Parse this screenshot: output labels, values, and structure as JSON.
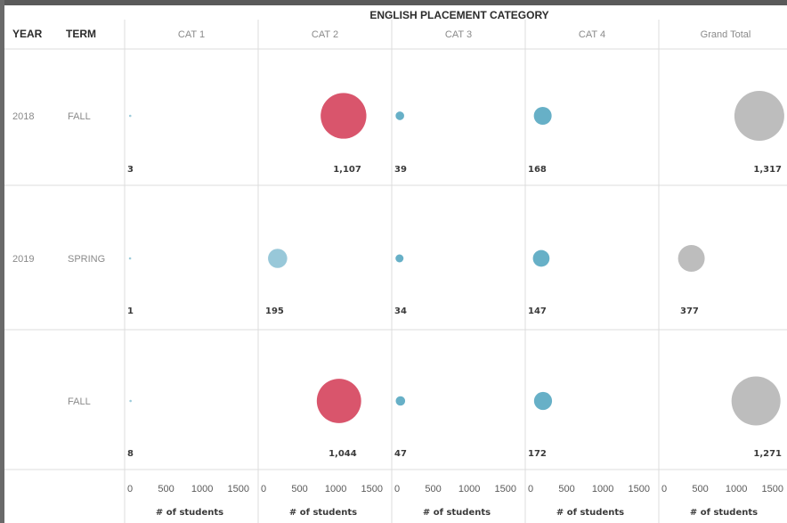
{
  "chart_data": {
    "type": "scatter",
    "title": "ENGLISH PLACEMENT CATEGORY",
    "row_headers": [
      "YEAR",
      "TERM"
    ],
    "columns": [
      "CAT 1",
      "CAT 2",
      "CAT 3",
      "CAT 4",
      "Grand Total"
    ],
    "rows": [
      {
        "year": "2018",
        "term": "FALL",
        "values": [
          3,
          1107,
          39,
          168,
          1317
        ]
      },
      {
        "year": "2019",
        "term": "SPRING",
        "values": [
          1,
          195,
          34,
          147,
          377
        ]
      },
      {
        "year": "",
        "term": "FALL",
        "values": [
          8,
          1044,
          47,
          172,
          1271
        ]
      }
    ],
    "value_labels": [
      [
        "3",
        "1,107",
        "39",
        "168",
        "1,317"
      ],
      [
        "1",
        "195",
        "34",
        "147",
        "377"
      ],
      [
        "8",
        "1,044",
        "47",
        "172",
        "1,271"
      ]
    ],
    "xlabel": "# of students",
    "x_ticks": [
      "0",
      "500",
      "1000",
      "1500"
    ],
    "xlim": [
      0,
      1700
    ],
    "colors": {
      "cat_default": "#5aa9c2",
      "cat2_large": "#d6475f",
      "cat2_small": "#8fc3d6",
      "grand_total": "#b7b7b7"
    }
  }
}
